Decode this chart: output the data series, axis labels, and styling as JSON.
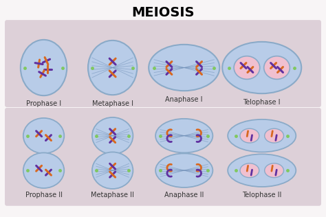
{
  "title": "MEIOSIS",
  "title_fontsize": 14,
  "title_fontweight": "bold",
  "background_color": "#f8f5f6",
  "panel_bg": "#ddd0d8",
  "cell_membrane_color": "#8aaac8",
  "cell_fill_color": "#b8cce8",
  "cell_fill_dark": "#a0b8d8",
  "nucleus_fill": "#c8d8f0",
  "pink_nucleus": "#f0c0d0",
  "spindle_color": "#7090b8",
  "chrom_orange": "#d86820",
  "chrom_purple": "#6030a0",
  "dot_color": "#80c860",
  "labels_row1": [
    "Prophase I",
    "Metaphase I",
    "Anaphase I",
    "Telophase I"
  ],
  "labels_row2": [
    "Prophase II",
    "Metaphase II",
    "Anaphase II",
    "Telophase II"
  ],
  "label_fontsize": 7.0
}
